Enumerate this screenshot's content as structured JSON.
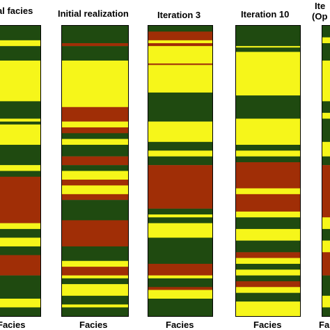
{
  "colors": {
    "green": "#1f4a10",
    "yellow": "#f6f61a",
    "red": "#a02e06"
  },
  "columns": [
    {
      "title": "al facies",
      "title_line2": "",
      "xlabel": "Facies",
      "strata": [
        [
          "green",
          0,
          0.05
        ],
        [
          "yellow",
          0.05,
          0.07
        ],
        [
          "green",
          0.07,
          0.12
        ],
        [
          "yellow",
          0.12,
          0.26
        ],
        [
          "green",
          0.26,
          0.32
        ],
        [
          "yellow",
          0.32,
          0.33
        ],
        [
          "green",
          0.33,
          0.34
        ],
        [
          "yellow",
          0.34,
          0.41
        ],
        [
          "green",
          0.41,
          0.48
        ],
        [
          "yellow",
          0.48,
          0.5
        ],
        [
          "green",
          0.5,
          0.52
        ],
        [
          "red",
          0.52,
          0.68
        ],
        [
          "yellow",
          0.68,
          0.7
        ],
        [
          "green",
          0.7,
          0.73
        ],
        [
          "yellow",
          0.73,
          0.76
        ],
        [
          "green",
          0.76,
          0.79
        ],
        [
          "red",
          0.79,
          0.86
        ],
        [
          "green",
          0.86,
          0.94
        ],
        [
          "yellow",
          0.94,
          0.97
        ],
        [
          "green",
          0.97,
          1.0
        ]
      ]
    },
    {
      "title": "Initial realization",
      "title_line2": "",
      "xlabel": "Facies",
      "strata": [
        [
          "green",
          0,
          0.06
        ],
        [
          "red",
          0.06,
          0.07
        ],
        [
          "green",
          0.07,
          0.12
        ],
        [
          "yellow",
          0.12,
          0.28
        ],
        [
          "red",
          0.28,
          0.33
        ],
        [
          "yellow",
          0.33,
          0.35
        ],
        [
          "red",
          0.35,
          0.37
        ],
        [
          "green",
          0.37,
          0.39
        ],
        [
          "yellow",
          0.39,
          0.41
        ],
        [
          "green",
          0.41,
          0.45
        ],
        [
          "red",
          0.45,
          0.48
        ],
        [
          "green",
          0.48,
          0.5
        ],
        [
          "yellow",
          0.5,
          0.53
        ],
        [
          "red",
          0.53,
          0.55
        ],
        [
          "yellow",
          0.55,
          0.58
        ],
        [
          "red",
          0.58,
          0.6
        ],
        [
          "green",
          0.6,
          0.67
        ],
        [
          "red",
          0.67,
          0.76
        ],
        [
          "green",
          0.76,
          0.81
        ],
        [
          "yellow",
          0.81,
          0.83
        ],
        [
          "red",
          0.83,
          0.86
        ],
        [
          "yellow",
          0.86,
          0.87
        ],
        [
          "green",
          0.87,
          0.89
        ],
        [
          "yellow",
          0.89,
          0.93
        ],
        [
          "green",
          0.93,
          0.96
        ],
        [
          "yellow",
          0.96,
          0.97
        ],
        [
          "green",
          0.97,
          1.0
        ]
      ]
    },
    {
      "title": "Iteration 3",
      "title_line2": "",
      "xlabel": "Facies",
      "strata": [
        [
          "green",
          0,
          0.02
        ],
        [
          "red",
          0.02,
          0.05
        ],
        [
          "yellow",
          0.05,
          0.06
        ],
        [
          "red",
          0.06,
          0.07
        ],
        [
          "yellow",
          0.07,
          0.13
        ],
        [
          "red",
          0.13,
          0.135
        ],
        [
          "yellow",
          0.135,
          0.23
        ],
        [
          "green",
          0.23,
          0.33
        ],
        [
          "yellow",
          0.33,
          0.4
        ],
        [
          "green",
          0.4,
          0.43
        ],
        [
          "yellow",
          0.43,
          0.45
        ],
        [
          "green",
          0.45,
          0.48
        ],
        [
          "red",
          0.48,
          0.63
        ],
        [
          "green",
          0.63,
          0.65
        ],
        [
          "yellow",
          0.65,
          0.66
        ],
        [
          "green",
          0.66,
          0.68
        ],
        [
          "yellow",
          0.68,
          0.73
        ],
        [
          "green",
          0.73,
          0.82
        ],
        [
          "red",
          0.82,
          0.86
        ],
        [
          "yellow",
          0.86,
          0.87
        ],
        [
          "green",
          0.87,
          0.9
        ],
        [
          "red",
          0.9,
          0.91
        ],
        [
          "yellow",
          0.91,
          0.94
        ],
        [
          "green",
          0.94,
          1.0
        ]
      ]
    },
    {
      "title": "Iteration 10",
      "title_line2": "",
      "xlabel": "Facies",
      "strata": [
        [
          "green",
          0,
          0.07
        ],
        [
          "yellow",
          0.07,
          0.075
        ],
        [
          "green",
          0.075,
          0.09
        ],
        [
          "yellow",
          0.09,
          0.24
        ],
        [
          "green",
          0.24,
          0.32
        ],
        [
          "yellow",
          0.32,
          0.41
        ],
        [
          "green",
          0.41,
          0.43
        ],
        [
          "yellow",
          0.43,
          0.45
        ],
        [
          "green",
          0.45,
          0.47
        ],
        [
          "red",
          0.47,
          0.56
        ],
        [
          "yellow",
          0.56,
          0.58
        ],
        [
          "red",
          0.58,
          0.64
        ],
        [
          "yellow",
          0.64,
          0.66
        ],
        [
          "green",
          0.66,
          0.7
        ],
        [
          "yellow",
          0.7,
          0.74
        ],
        [
          "green",
          0.74,
          0.78
        ],
        [
          "red",
          0.78,
          0.8
        ],
        [
          "yellow",
          0.8,
          0.82
        ],
        [
          "green",
          0.82,
          0.84
        ],
        [
          "yellow",
          0.84,
          0.86
        ],
        [
          "green",
          0.86,
          0.88
        ],
        [
          "red",
          0.88,
          0.9
        ],
        [
          "yellow",
          0.9,
          0.92
        ],
        [
          "green",
          0.92,
          0.95
        ],
        [
          "yellow",
          0.95,
          1.0
        ]
      ]
    },
    {
      "title": "Ite",
      "title_line2": "(Op",
      "xlabel": "Fa",
      "strata": [
        [
          "green",
          0,
          0.04
        ],
        [
          "yellow",
          0.04,
          0.06
        ],
        [
          "green",
          0.06,
          0.12
        ],
        [
          "yellow",
          0.12,
          0.26
        ],
        [
          "green",
          0.26,
          0.3
        ],
        [
          "yellow",
          0.3,
          0.32
        ],
        [
          "green",
          0.32,
          0.4
        ],
        [
          "yellow",
          0.4,
          0.45
        ],
        [
          "green",
          0.45,
          0.48
        ],
        [
          "red",
          0.48,
          0.66
        ],
        [
          "yellow",
          0.66,
          0.7
        ],
        [
          "green",
          0.7,
          0.74
        ],
        [
          "yellow",
          0.74,
          0.78
        ],
        [
          "red",
          0.78,
          0.86
        ],
        [
          "green",
          0.86,
          0.93
        ],
        [
          "yellow",
          0.93,
          0.97
        ],
        [
          "green",
          0.97,
          1.0
        ]
      ]
    }
  ]
}
